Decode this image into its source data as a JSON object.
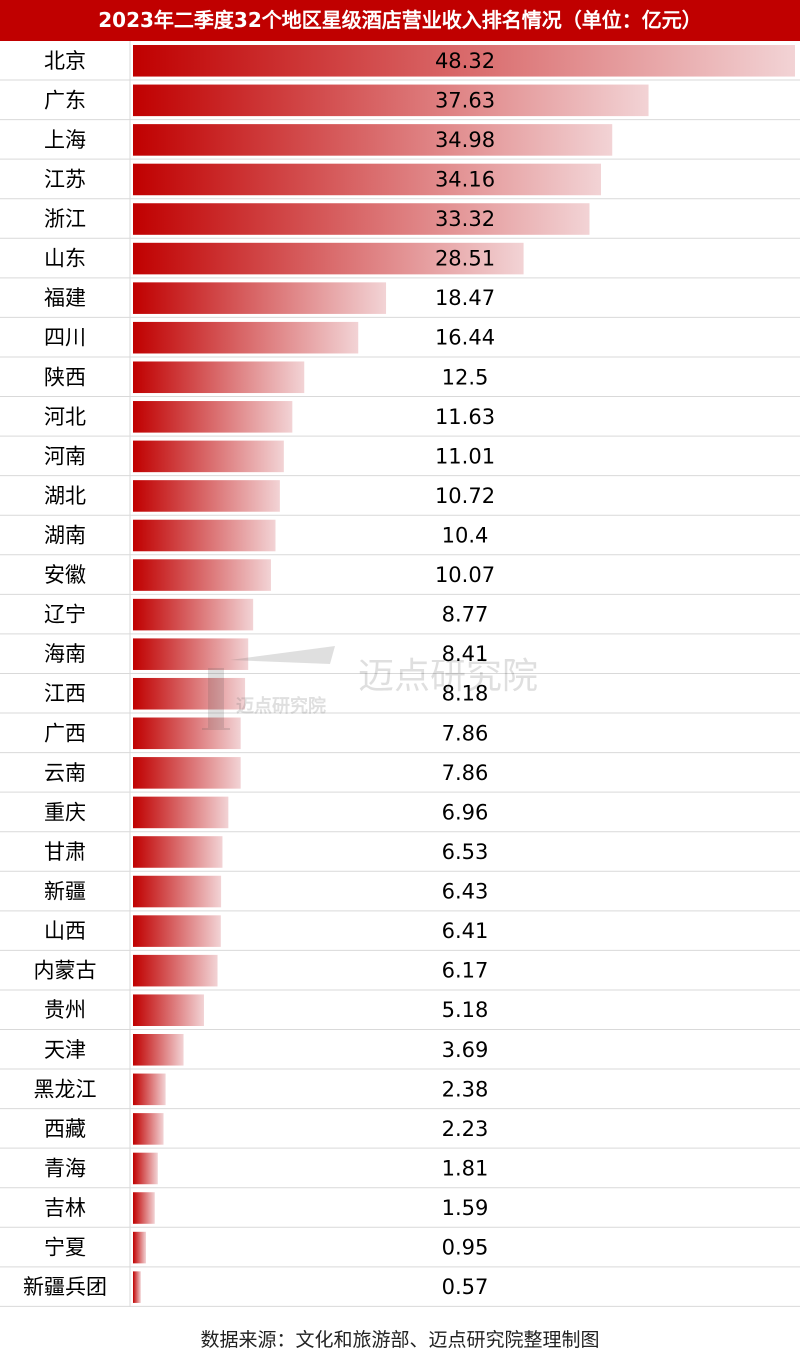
{
  "chart_data": {
    "type": "bar",
    "orientation": "horizontal",
    "title": "2023年二季度32个地区星级酒店营业收入排名情况（单位：亿元）",
    "unit": "亿元",
    "categories": [
      "北京",
      "广东",
      "上海",
      "江苏",
      "浙江",
      "山东",
      "福建",
      "四川",
      "陕西",
      "河北",
      "河南",
      "湖北",
      "湖南",
      "安徽",
      "辽宁",
      "海南",
      "江西",
      "广西",
      "云南",
      "重庆",
      "甘肃",
      "新疆",
      "山西",
      "内蒙古",
      "贵州",
      "天津",
      "黑龙江",
      "西藏",
      "青海",
      "吉林",
      "宁夏",
      "新疆兵团"
    ],
    "values": [
      48.32,
      37.63,
      34.98,
      34.16,
      33.32,
      28.51,
      18.47,
      16.44,
      12.5,
      11.63,
      11.01,
      10.72,
      10.4,
      10.07,
      8.77,
      8.41,
      8.18,
      7.86,
      7.86,
      6.96,
      6.53,
      6.43,
      6.41,
      6.17,
      5.18,
      3.69,
      2.38,
      2.23,
      1.81,
      1.59,
      0.95,
      0.57
    ],
    "value_labels": [
      "48.32",
      "37.63",
      "34.98",
      "34.16",
      "33.32",
      "28.51",
      "18.47",
      "16.44",
      "12.5",
      "11.63",
      "11.01",
      "10.72",
      "10.4",
      "10.07",
      "8.77",
      "8.41",
      "8.18",
      "7.86",
      "7.86",
      "6.96",
      "6.53",
      "6.43",
      "6.41",
      "6.17",
      "5.18",
      "3.69",
      "2.38",
      "2.23",
      "1.81",
      "1.59",
      "0.95",
      "0.57"
    ],
    "xlim": [
      0,
      48.32
    ],
    "grid": false,
    "legend": "none"
  },
  "colors": {
    "title_bg": "#c00000",
    "bar_start": "#c00000",
    "bar_end": "#f2d3d5",
    "row_line": "#d9d9d9"
  },
  "watermark": {
    "logo_text": "迈点研究院",
    "text": "迈点研究院"
  },
  "source": "数据来源：文化和旅游部、迈点研究院整理制图"
}
